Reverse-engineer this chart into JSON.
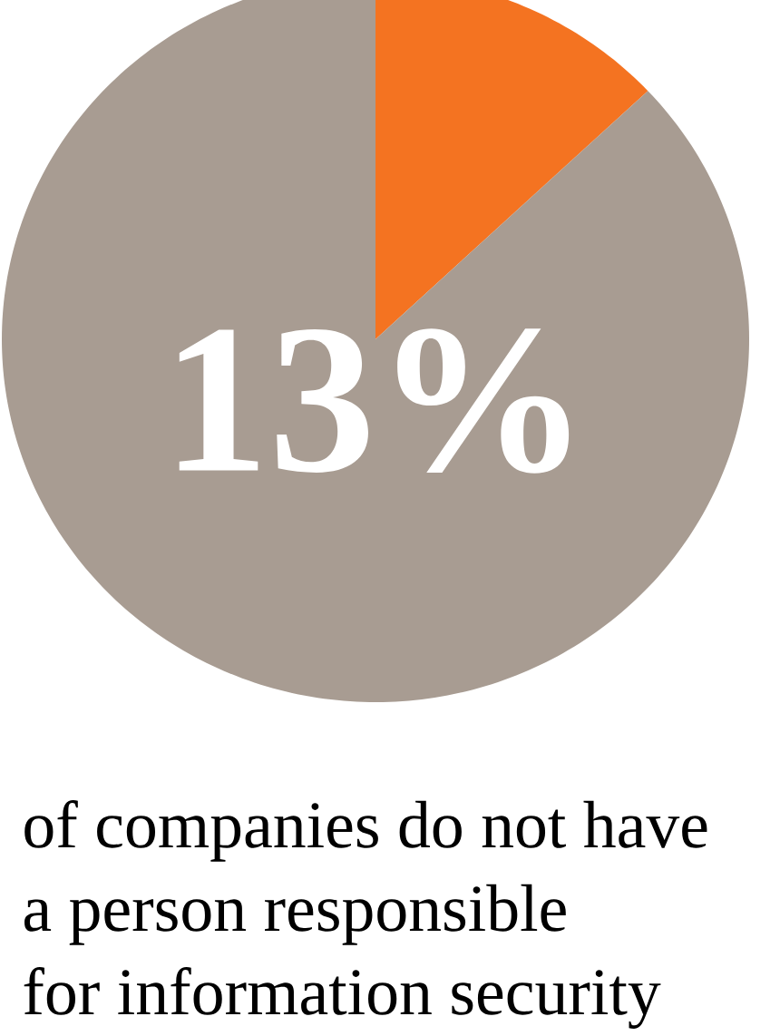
{
  "chart_data": {
    "type": "pie",
    "title": "13%",
    "categories": [
      null,
      null
    ],
    "values": [
      13,
      87
    ],
    "colors": [
      "#f47321",
      "#a89c92"
    ],
    "annotations": [
      "of companies do not have",
      "a person responsible",
      "for information security"
    ]
  }
}
